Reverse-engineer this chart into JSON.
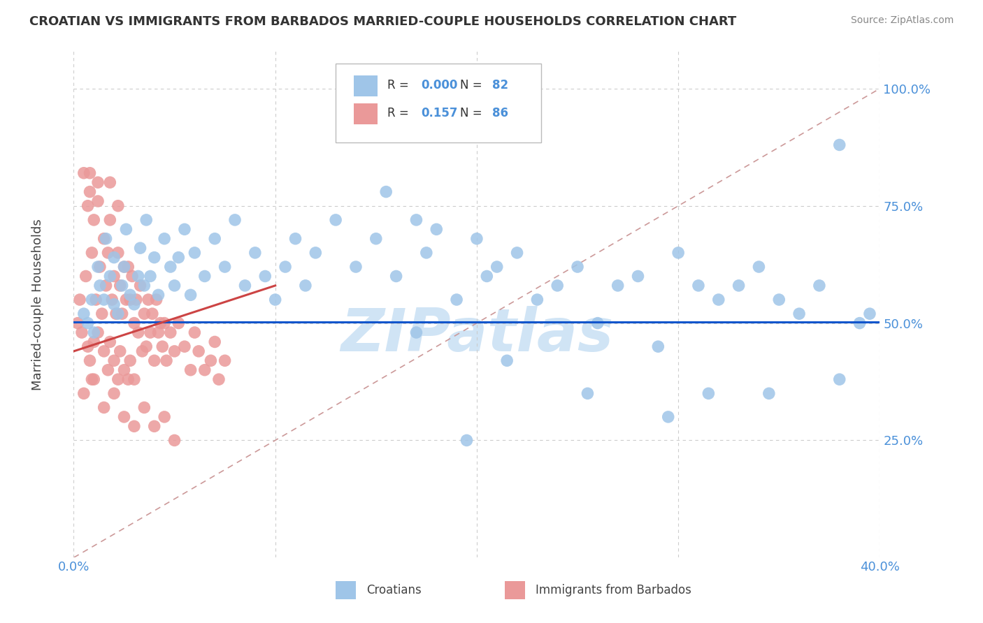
{
  "title": "CROATIAN VS IMMIGRANTS FROM BARBADOS MARRIED-COUPLE HOUSEHOLDS CORRELATION CHART",
  "source": "Source: ZipAtlas.com",
  "ylabel": "Married-couple Households",
  "legend_label_blue": "Croatians",
  "legend_label_pink": "Immigrants from Barbados",
  "R_blue": 0.0,
  "N_blue": 82,
  "R_pink": 0.157,
  "N_pink": 86,
  "xlim": [
    0.0,
    0.4
  ],
  "ylim": [
    0.0,
    1.08
  ],
  "color_blue": "#9fc5e8",
  "color_pink": "#ea9999",
  "trend_blue": "#1155cc",
  "trend_pink": "#cc4444",
  "ref_line_color": "#cc9999",
  "watermark": "ZIPatlas",
  "watermark_color": "#d0e4f5",
  "background": "#ffffff",
  "grid_color": "#cccccc",
  "blue_x": [
    0.005,
    0.007,
    0.009,
    0.01,
    0.012,
    0.013,
    0.015,
    0.016,
    0.018,
    0.02,
    0.02,
    0.022,
    0.024,
    0.025,
    0.026,
    0.028,
    0.03,
    0.032,
    0.033,
    0.035,
    0.036,
    0.038,
    0.04,
    0.042,
    0.045,
    0.048,
    0.05,
    0.052,
    0.055,
    0.058,
    0.06,
    0.065,
    0.07,
    0.075,
    0.08,
    0.085,
    0.09,
    0.095,
    0.1,
    0.105,
    0.11,
    0.115,
    0.12,
    0.13,
    0.14,
    0.15,
    0.155,
    0.16,
    0.17,
    0.175,
    0.18,
    0.19,
    0.2,
    0.205,
    0.21,
    0.22,
    0.23,
    0.24,
    0.25,
    0.26,
    0.27,
    0.28,
    0.29,
    0.3,
    0.31,
    0.32,
    0.33,
    0.34,
    0.35,
    0.36,
    0.37,
    0.38,
    0.39,
    0.17,
    0.195,
    0.215,
    0.255,
    0.295,
    0.315,
    0.345,
    0.38,
    0.395
  ],
  "blue_y": [
    0.52,
    0.5,
    0.55,
    0.48,
    0.62,
    0.58,
    0.55,
    0.68,
    0.6,
    0.54,
    0.64,
    0.52,
    0.58,
    0.62,
    0.7,
    0.56,
    0.54,
    0.6,
    0.66,
    0.58,
    0.72,
    0.6,
    0.64,
    0.56,
    0.68,
    0.62,
    0.58,
    0.64,
    0.7,
    0.56,
    0.65,
    0.6,
    0.68,
    0.62,
    0.72,
    0.58,
    0.65,
    0.6,
    0.55,
    0.62,
    0.68,
    0.58,
    0.65,
    0.72,
    0.62,
    0.68,
    0.78,
    0.6,
    0.72,
    0.65,
    0.7,
    0.55,
    0.68,
    0.6,
    0.62,
    0.65,
    0.55,
    0.58,
    0.62,
    0.5,
    0.58,
    0.6,
    0.45,
    0.65,
    0.58,
    0.55,
    0.58,
    0.62,
    0.55,
    0.52,
    0.58,
    0.38,
    0.5,
    0.48,
    0.25,
    0.42,
    0.35,
    0.3,
    0.35,
    0.35,
    0.88,
    0.52
  ],
  "pink_x": [
    0.002,
    0.003,
    0.004,
    0.005,
    0.006,
    0.007,
    0.007,
    0.008,
    0.008,
    0.009,
    0.009,
    0.01,
    0.01,
    0.011,
    0.012,
    0.012,
    0.013,
    0.014,
    0.015,
    0.015,
    0.016,
    0.017,
    0.017,
    0.018,
    0.018,
    0.019,
    0.02,
    0.02,
    0.021,
    0.022,
    0.022,
    0.023,
    0.023,
    0.024,
    0.025,
    0.025,
    0.026,
    0.027,
    0.027,
    0.028,
    0.028,
    0.029,
    0.03,
    0.03,
    0.031,
    0.032,
    0.033,
    0.034,
    0.035,
    0.036,
    0.037,
    0.038,
    0.039,
    0.04,
    0.041,
    0.042,
    0.043,
    0.044,
    0.045,
    0.046,
    0.048,
    0.05,
    0.052,
    0.055,
    0.058,
    0.06,
    0.062,
    0.065,
    0.068,
    0.07,
    0.072,
    0.075,
    0.005,
    0.01,
    0.015,
    0.02,
    0.025,
    0.03,
    0.035,
    0.04,
    0.045,
    0.05,
    0.008,
    0.012,
    0.018,
    0.022
  ],
  "pink_y": [
    0.5,
    0.55,
    0.48,
    0.82,
    0.6,
    0.75,
    0.45,
    0.78,
    0.42,
    0.65,
    0.38,
    0.72,
    0.46,
    0.55,
    0.8,
    0.48,
    0.62,
    0.52,
    0.68,
    0.44,
    0.58,
    0.65,
    0.4,
    0.72,
    0.46,
    0.55,
    0.6,
    0.42,
    0.52,
    0.65,
    0.38,
    0.58,
    0.44,
    0.52,
    0.62,
    0.4,
    0.55,
    0.62,
    0.38,
    0.55,
    0.42,
    0.6,
    0.5,
    0.38,
    0.55,
    0.48,
    0.58,
    0.44,
    0.52,
    0.45,
    0.55,
    0.48,
    0.52,
    0.42,
    0.55,
    0.48,
    0.5,
    0.45,
    0.5,
    0.42,
    0.48,
    0.44,
    0.5,
    0.45,
    0.4,
    0.48,
    0.44,
    0.4,
    0.42,
    0.46,
    0.38,
    0.42,
    0.35,
    0.38,
    0.32,
    0.35,
    0.3,
    0.28,
    0.32,
    0.28,
    0.3,
    0.25,
    0.82,
    0.76,
    0.8,
    0.75
  ]
}
